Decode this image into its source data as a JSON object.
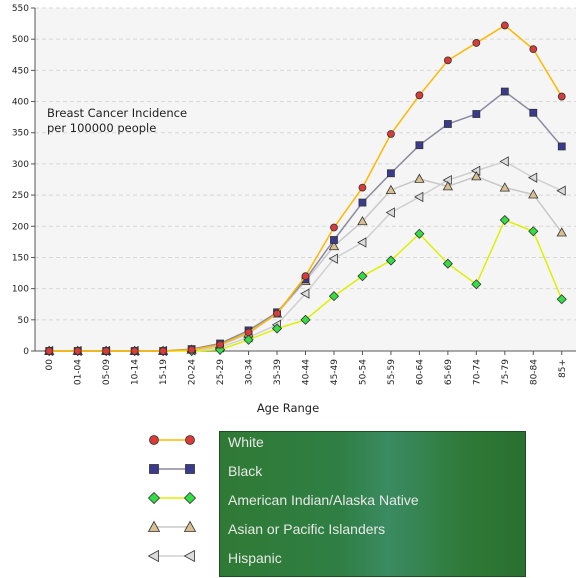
{
  "chart_data": {
    "type": "line",
    "annotation_lines": [
      "Breast Cancer Incidence",
      "per 100000 people"
    ],
    "xlabel": "Age Range",
    "categories": [
      "00",
      "01-04",
      "05-09",
      "10-14",
      "15-19",
      "20-24",
      "25-29",
      "30-34",
      "35-39",
      "40-44",
      "45-49",
      "50-54",
      "55-59",
      "60-64",
      "65-69",
      "70-74",
      "75-79",
      "80-84",
      "85+"
    ],
    "yticks": [
      "0",
      "50",
      "100",
      "150",
      "200",
      "250",
      "300",
      "350",
      "400",
      "450",
      "500",
      "550"
    ],
    "ylim": [
      0,
      550
    ],
    "grid": true,
    "legend_position": "bottom",
    "series": [
      {
        "name": "White",
        "line_color": "#ffb800",
        "marker": "circle",
        "marker_color": "#d93a3a",
        "values": [
          0,
          0,
          0,
          0,
          0,
          2,
          10,
          30,
          60,
          120,
          198,
          262,
          348,
          410,
          466,
          494,
          522,
          484,
          408
        ]
      },
      {
        "name": "Black",
        "line_color": "#8a8aa0",
        "marker": "square",
        "marker_color": "#3a3a90",
        "values": [
          0,
          0,
          0,
          0,
          0,
          3,
          12,
          33,
          62,
          115,
          178,
          238,
          285,
          330,
          364,
          380,
          416,
          382,
          328
        ]
      },
      {
        "name": "American Indian/Alaska Native",
        "line_color": "#ddf000",
        "marker": "diamond",
        "marker_color": "#33dd44",
        "values": [
          0,
          0,
          0,
          0,
          0,
          0,
          2,
          18,
          36,
          50,
          88,
          120,
          145,
          188,
          140,
          107,
          210,
          192,
          83
        ]
      },
      {
        "name": "Asian or Pacific Islanders",
        "line_color": "#c8c8c8",
        "marker": "triangle-up",
        "marker_color": "#d8c090",
        "values": [
          0,
          0,
          0,
          0,
          0,
          2,
          9,
          28,
          60,
          112,
          168,
          208,
          258,
          276,
          264,
          280,
          262,
          251,
          190
        ]
      },
      {
        "name": "Hispanic",
        "line_color": "#d0d0d0",
        "marker": "triangle-left",
        "marker_color": "#dcdcdc",
        "values": [
          0,
          0,
          0,
          0,
          0,
          1,
          6,
          22,
          42,
          92,
          148,
          174,
          222,
          247,
          274,
          289,
          304,
          278,
          257
        ]
      }
    ]
  }
}
